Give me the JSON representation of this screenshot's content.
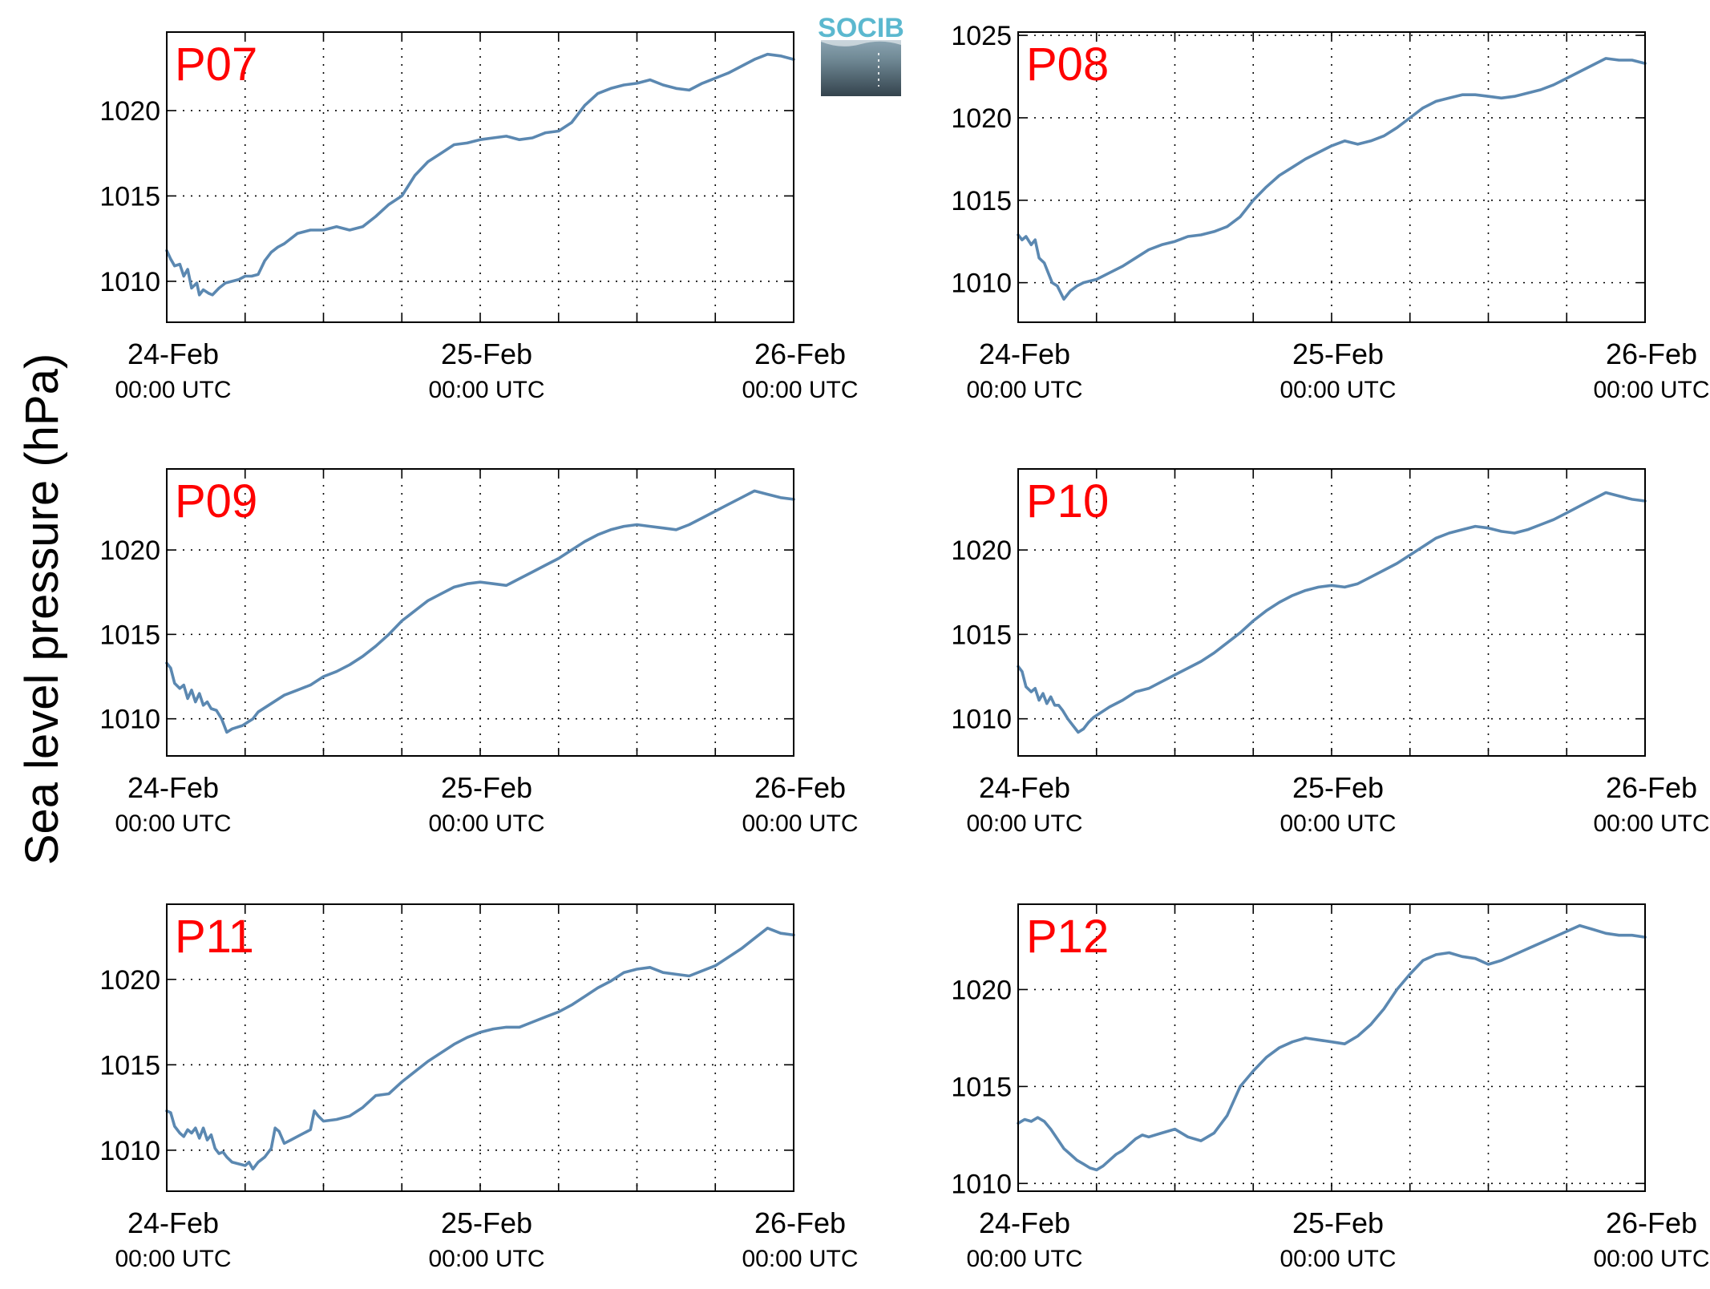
{
  "figure": {
    "ylabel": "Sea level pressure (hPa)",
    "logo_text": "SOCIB",
    "line_color": "#5b88b1",
    "label_color": "#ff0000",
    "logo_color": "#5bb8cf"
  },
  "x_ticks": [
    {
      "date": "24-Feb",
      "time": "00:00 UTC",
      "hours": 0
    },
    {
      "date": "25-Feb",
      "time": "00:00 UTC",
      "hours": 24
    },
    {
      "date": "26-Feb",
      "time": "00:00 UTC",
      "hours": 48
    }
  ],
  "chart_data": [
    {
      "type": "line",
      "title": "P07",
      "xlim": [
        0,
        48
      ],
      "ylim": [
        1007.6,
        1024.6
      ],
      "yticks": [
        1010,
        1015,
        1020
      ],
      "x_gridlines_hours": [
        0,
        6,
        12,
        18,
        24,
        30,
        36,
        42,
        48
      ],
      "series": [
        {
          "x": [
            0,
            0.3,
            0.6,
            1,
            1.3,
            1.6,
            1.9,
            2.3,
            2.5,
            2.8,
            3.2,
            3.5,
            4,
            4.5,
            5,
            5.5,
            6,
            6.5,
            7,
            7.5,
            8,
            8.5,
            9,
            10,
            11,
            12,
            13,
            14,
            15,
            16,
            17,
            18,
            19,
            20,
            21,
            22,
            23,
            24,
            25,
            26,
            27,
            28,
            29,
            30,
            31,
            32,
            33,
            34,
            35,
            36,
            37,
            38,
            39,
            40,
            41,
            42,
            43,
            44,
            45,
            46,
            47,
            48
          ],
          "y": [
            1011.8,
            1011.3,
            1010.9,
            1011.0,
            1010.3,
            1010.7,
            1009.6,
            1009.9,
            1009.2,
            1009.5,
            1009.3,
            1009.2,
            1009.6,
            1009.9,
            1010.0,
            1010.1,
            1010.3,
            1010.3,
            1010.4,
            1011.2,
            1011.7,
            1012.0,
            1012.2,
            1012.8,
            1013.0,
            1013.0,
            1013.2,
            1013.0,
            1013.2,
            1013.8,
            1014.5,
            1015.0,
            1016.2,
            1017.0,
            1017.5,
            1018.0,
            1018.1,
            1018.3,
            1018.4,
            1018.5,
            1018.3,
            1018.4,
            1018.7,
            1018.8,
            1019.3,
            1020.3,
            1021.0,
            1021.3,
            1021.5,
            1021.6,
            1021.8,
            1021.5,
            1021.3,
            1021.2,
            1021.6,
            1021.9,
            1022.2,
            1022.6,
            1023.0,
            1023.3,
            1023.2,
            1023.0
          ]
        }
      ]
    },
    {
      "type": "line",
      "title": "P08",
      "xlim": [
        0,
        48
      ],
      "ylim": [
        1007.6,
        1025.2
      ],
      "yticks": [
        1010,
        1015,
        1020,
        1025
      ],
      "x_gridlines_hours": [
        0,
        6,
        12,
        18,
        24,
        30,
        36,
        42,
        48
      ],
      "series": [
        {
          "x": [
            0,
            0.3,
            0.6,
            1,
            1.3,
            1.6,
            2,
            2.3,
            2.6,
            3,
            3.5,
            4,
            4.5,
            5,
            6,
            7,
            8,
            9,
            10,
            11,
            12,
            13,
            14,
            15,
            16,
            17,
            18,
            19,
            20,
            21,
            22,
            23,
            24,
            25,
            26,
            27,
            28,
            29,
            30,
            31,
            32,
            33,
            34,
            35,
            36,
            37,
            38,
            39,
            40,
            41,
            42,
            43,
            44,
            45,
            46,
            47,
            48
          ],
          "y": [
            1012.9,
            1012.6,
            1012.8,
            1012.3,
            1012.6,
            1011.5,
            1011.2,
            1010.6,
            1010.0,
            1009.8,
            1009.0,
            1009.5,
            1009.8,
            1010.0,
            1010.2,
            1010.6,
            1011.0,
            1011.5,
            1012.0,
            1012.3,
            1012.5,
            1012.8,
            1012.9,
            1013.1,
            1013.4,
            1014.0,
            1015.0,
            1015.8,
            1016.5,
            1017.0,
            1017.5,
            1017.9,
            1018.3,
            1018.6,
            1018.4,
            1018.6,
            1018.9,
            1019.4,
            1020.0,
            1020.6,
            1021.0,
            1021.2,
            1021.4,
            1021.4,
            1021.3,
            1021.2,
            1021.3,
            1021.5,
            1021.7,
            1022.0,
            1022.4,
            1022.8,
            1023.2,
            1023.6,
            1023.5,
            1023.5,
            1023.3
          ]
        }
      ]
    },
    {
      "type": "line",
      "title": "P09",
      "xlim": [
        0,
        48
      ],
      "ylim": [
        1007.8,
        1024.8
      ],
      "yticks": [
        1010,
        1015,
        1020
      ],
      "x_gridlines_hours": [
        0,
        6,
        12,
        18,
        24,
        30,
        36,
        42,
        48
      ],
      "series": [
        {
          "x": [
            0,
            0.3,
            0.6,
            1,
            1.3,
            1.6,
            1.9,
            2.2,
            2.5,
            2.8,
            3.1,
            3.4,
            3.8,
            4.2,
            4.6,
            5,
            5.4,
            5.8,
            6.2,
            6.6,
            7,
            8,
            9,
            10,
            11,
            12,
            13,
            14,
            15,
            16,
            17,
            18,
            19,
            20,
            21,
            22,
            23,
            24,
            25,
            26,
            27,
            28,
            29,
            30,
            31,
            32,
            33,
            34,
            35,
            36,
            37,
            38,
            39,
            40,
            41,
            42,
            43,
            44,
            45,
            46,
            47,
            48
          ],
          "y": [
            1013.3,
            1013.0,
            1012.1,
            1011.8,
            1012.0,
            1011.2,
            1011.7,
            1011.0,
            1011.5,
            1010.8,
            1011.0,
            1010.6,
            1010.5,
            1010.0,
            1009.2,
            1009.4,
            1009.5,
            1009.6,
            1009.8,
            1010.0,
            1010.4,
            1010.9,
            1011.4,
            1011.7,
            1012.0,
            1012.5,
            1012.8,
            1013.2,
            1013.7,
            1014.3,
            1015.0,
            1015.8,
            1016.4,
            1017.0,
            1017.4,
            1017.8,
            1018.0,
            1018.1,
            1018.0,
            1017.9,
            1018.3,
            1018.7,
            1019.1,
            1019.5,
            1020.0,
            1020.5,
            1020.9,
            1021.2,
            1021.4,
            1021.5,
            1021.4,
            1021.3,
            1021.2,
            1021.5,
            1021.9,
            1022.3,
            1022.7,
            1023.1,
            1023.5,
            1023.3,
            1023.1,
            1023.0
          ]
        }
      ]
    },
    {
      "type": "line",
      "title": "P10",
      "xlim": [
        0,
        48
      ],
      "ylim": [
        1007.8,
        1024.8
      ],
      "yticks": [
        1010,
        1015,
        1020
      ],
      "x_gridlines_hours": [
        0,
        6,
        12,
        18,
        24,
        30,
        36,
        42,
        48
      ],
      "series": [
        {
          "x": [
            0,
            0.3,
            0.6,
            1,
            1.3,
            1.6,
            1.9,
            2.2,
            2.5,
            2.8,
            3.1,
            3.4,
            3.8,
            4.2,
            4.6,
            5,
            5.4,
            5.8,
            6.2,
            6.6,
            7,
            8,
            9,
            10,
            11,
            12,
            13,
            14,
            15,
            16,
            17,
            18,
            19,
            20,
            21,
            22,
            23,
            24,
            25,
            26,
            27,
            28,
            29,
            30,
            31,
            32,
            33,
            34,
            35,
            36,
            37,
            38,
            39,
            40,
            41,
            42,
            43,
            44,
            45,
            46,
            47,
            48
          ],
          "y": [
            1013.1,
            1012.8,
            1011.9,
            1011.6,
            1011.8,
            1011.1,
            1011.5,
            1010.9,
            1011.3,
            1010.8,
            1010.8,
            1010.5,
            1010.0,
            1009.6,
            1009.2,
            1009.4,
            1009.8,
            1010.1,
            1010.3,
            1010.5,
            1010.7,
            1011.1,
            1011.6,
            1011.8,
            1012.2,
            1012.6,
            1013.0,
            1013.4,
            1013.9,
            1014.5,
            1015.1,
            1015.8,
            1016.4,
            1016.9,
            1017.3,
            1017.6,
            1017.8,
            1017.9,
            1017.8,
            1018.0,
            1018.4,
            1018.8,
            1019.2,
            1019.7,
            1020.2,
            1020.7,
            1021.0,
            1021.2,
            1021.4,
            1021.3,
            1021.1,
            1021.0,
            1021.2,
            1021.5,
            1021.8,
            1022.2,
            1022.6,
            1023.0,
            1023.4,
            1023.2,
            1023.0,
            1022.9
          ]
        }
      ]
    },
    {
      "type": "line",
      "title": "P11",
      "xlim": [
        0,
        48
      ],
      "ylim": [
        1007.6,
        1024.4
      ],
      "yticks": [
        1010,
        1015,
        1020
      ],
      "x_gridlines_hours": [
        0,
        6,
        12,
        18,
        24,
        30,
        36,
        42,
        48
      ],
      "series": [
        {
          "x": [
            0,
            0.3,
            0.6,
            1,
            1.3,
            1.6,
            1.9,
            2.2,
            2.5,
            2.8,
            3.1,
            3.4,
            3.7,
            4,
            4.3,
            4.6,
            5,
            5.5,
            6,
            6.3,
            6.6,
            7,
            7.5,
            8,
            8.3,
            8.6,
            9,
            9.5,
            10,
            11,
            11.3,
            11.6,
            12,
            13,
            14,
            15,
            16,
            17,
            18,
            19,
            20,
            21,
            22,
            23,
            24,
            25,
            26,
            27,
            28,
            29,
            30,
            31,
            32,
            33,
            34,
            35,
            36,
            37,
            38,
            39,
            40,
            41,
            42,
            43,
            44,
            45,
            46,
            47,
            48
          ],
          "y": [
            1012.3,
            1012.2,
            1011.4,
            1011.0,
            1010.8,
            1011.2,
            1011.0,
            1011.3,
            1010.7,
            1011.3,
            1010.6,
            1010.9,
            1010.1,
            1009.8,
            1009.9,
            1009.6,
            1009.3,
            1009.2,
            1009.1,
            1009.3,
            1008.9,
            1009.3,
            1009.6,
            1010.1,
            1011.3,
            1011.1,
            1010.4,
            1010.6,
            1010.8,
            1011.2,
            1012.3,
            1012.0,
            1011.7,
            1011.8,
            1012.0,
            1012.5,
            1013.2,
            1013.3,
            1014.0,
            1014.6,
            1015.2,
            1015.7,
            1016.2,
            1016.6,
            1016.9,
            1017.1,
            1017.2,
            1017.2,
            1017.5,
            1017.8,
            1018.1,
            1018.5,
            1019.0,
            1019.5,
            1019.9,
            1020.4,
            1020.6,
            1020.7,
            1020.4,
            1020.3,
            1020.2,
            1020.5,
            1020.8,
            1021.3,
            1021.8,
            1022.4,
            1023.0,
            1022.7,
            1022.6
          ]
        }
      ]
    },
    {
      "type": "line",
      "title": "P12",
      "xlim": [
        0,
        48
      ],
      "ylim": [
        1009.6,
        1024.4
      ],
      "yticks": [
        1010,
        1015,
        1020
      ],
      "x_gridlines_hours": [
        0,
        6,
        12,
        18,
        24,
        30,
        36,
        42,
        48
      ],
      "series": [
        {
          "x": [
            0,
            0.5,
            1,
            1.5,
            2,
            2.5,
            3,
            3.5,
            4,
            4.5,
            5,
            5.5,
            6,
            6.5,
            7,
            7.5,
            8,
            8.5,
            9,
            9.5,
            10,
            11,
            12,
            13,
            14,
            15,
            16,
            17,
            18,
            19,
            20,
            21,
            22,
            23,
            24,
            25,
            26,
            27,
            28,
            29,
            30,
            31,
            32,
            33,
            34,
            35,
            36,
            37,
            38,
            39,
            40,
            41,
            42,
            43,
            44,
            45,
            46,
            47,
            48
          ],
          "y": [
            1013.1,
            1013.3,
            1013.2,
            1013.4,
            1013.2,
            1012.8,
            1012.3,
            1011.8,
            1011.5,
            1011.2,
            1011.0,
            1010.8,
            1010.7,
            1010.9,
            1011.2,
            1011.5,
            1011.7,
            1012.0,
            1012.3,
            1012.5,
            1012.4,
            1012.6,
            1012.8,
            1012.4,
            1012.2,
            1012.6,
            1013.5,
            1015.0,
            1015.8,
            1016.5,
            1017.0,
            1017.3,
            1017.5,
            1017.4,
            1017.3,
            1017.2,
            1017.6,
            1018.2,
            1019.0,
            1020.0,
            1020.8,
            1021.5,
            1021.8,
            1021.9,
            1021.7,
            1021.6,
            1021.3,
            1021.5,
            1021.8,
            1022.1,
            1022.4,
            1022.7,
            1023.0,
            1023.3,
            1023.1,
            1022.9,
            1022.8,
            1022.8,
            1022.7
          ]
        }
      ]
    }
  ]
}
